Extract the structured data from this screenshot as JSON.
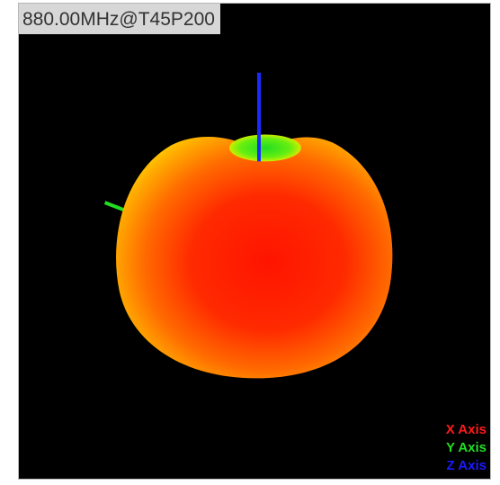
{
  "header": {
    "frequency_label": "880.00MHz@T45P200"
  },
  "legend": {
    "items": [
      {
        "label": "X Axis",
        "color": "#ff1a1a"
      },
      {
        "label": "Y Axis",
        "color": "#22dd22"
      },
      {
        "label": "Z Axis",
        "color": "#1a1aff"
      }
    ]
  },
  "colors": {
    "background": "#000000",
    "pattern_core": "#ff1a00",
    "pattern_mid": "#ff6a00",
    "pattern_edge": "#ffcc00",
    "pattern_null": "#33ee22"
  }
}
